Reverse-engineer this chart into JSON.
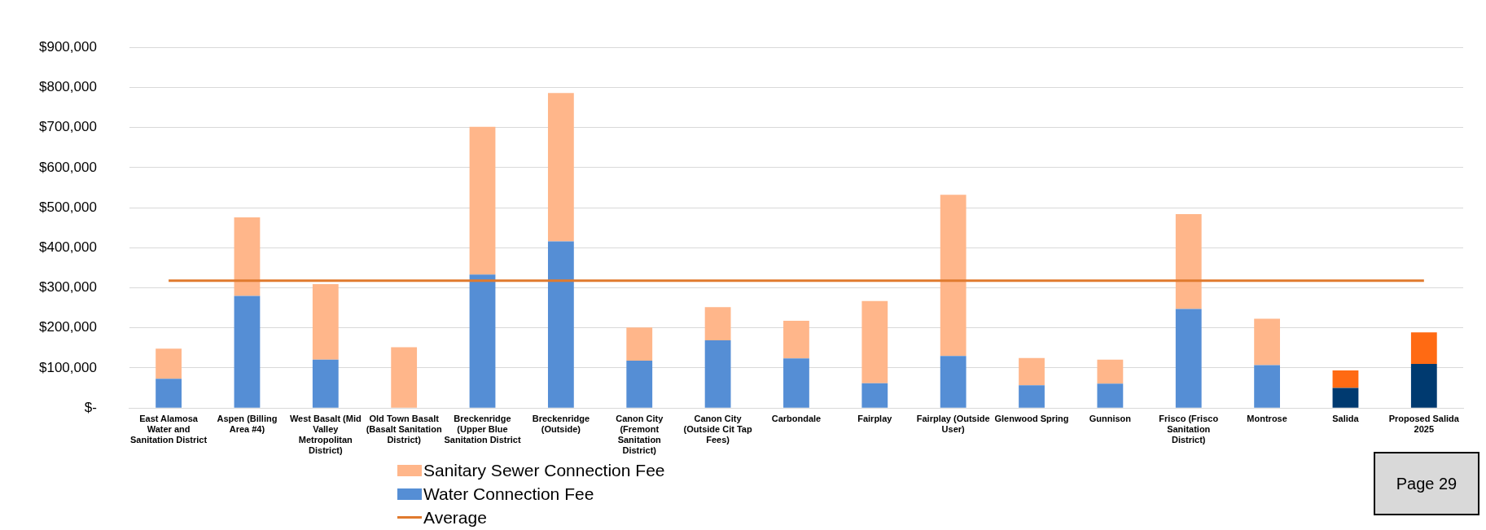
{
  "chart_data": {
    "type": "bar",
    "stacked": true,
    "categories": [
      "East Alamosa Water and Sanitation District",
      "Aspen (Billing Area #4)",
      "West Basalt (Mid Valley Metropolitan District)",
      "Old Town Basalt (Basalt Sanitation District)",
      "Breckenridge (Upper Blue Sanitation District",
      "Breckenridge (Outside)",
      "Canon City (Fremont Sanitation District)",
      "Canon City (Outside Cit Tap Fees)",
      "Carbondale",
      "Fairplay",
      "Fairplay (Outside User)",
      "Glenwood Spring",
      "Gunnison",
      "Frisco (Frisco Sanitation District)",
      "Montrose",
      "Salida",
      "Proposed Salida 2025"
    ],
    "series": [
      {
        "name": "Water Connection Fee",
        "color": "#558ed5",
        "colors": [
          "#558ed5",
          "#558ed5",
          "#558ed5",
          "#558ed5",
          "#558ed5",
          "#558ed5",
          "#558ed5",
          "#558ed5",
          "#558ed5",
          "#558ed5",
          "#558ed5",
          "#558ed5",
          "#558ed5",
          "#558ed5",
          "#558ed5",
          "#003a70",
          "#003a70"
        ],
        "values": [
          73000,
          280000,
          121000,
          0,
          333000,
          416000,
          118000,
          169000,
          124000,
          62000,
          130000,
          57000,
          61000,
          247000,
          107000,
          50000,
          110000
        ]
      },
      {
        "name": "Sanitary Sewer Connection Fee",
        "color": "#ffb68a",
        "colors": [
          "#ffb68a",
          "#ffb68a",
          "#ffb68a",
          "#ffb68a",
          "#ffb68a",
          "#ffb68a",
          "#ffb68a",
          "#ffb68a",
          "#ffb68a",
          "#ffb68a",
          "#ffb68a",
          "#ffb68a",
          "#ffb68a",
          "#ffb68a",
          "#ffb68a",
          "#ff6a13",
          "#ff6a13"
        ],
        "values": [
          75000,
          196000,
          188000,
          152000,
          369000,
          370000,
          83000,
          83000,
          94000,
          205000,
          402000,
          68000,
          60000,
          237000,
          116000,
          44000,
          79000
        ]
      },
      {
        "name": "Average",
        "type": "line",
        "color": "#e07a2e",
        "marker": "none",
        "values": [
          318000,
          318000,
          318000,
          318000,
          318000,
          318000,
          318000,
          318000,
          318000,
          318000,
          318000,
          318000,
          318000,
          318000,
          318000,
          318000,
          318000
        ]
      }
    ],
    "ylim": [
      0,
      900000
    ],
    "yticks": [
      {
        "value": 0,
        "label": "$-"
      },
      {
        "value": 100000,
        "label": "$100,000"
      },
      {
        "value": 200000,
        "label": "$200,000"
      },
      {
        "value": 300000,
        "label": "$300,000"
      },
      {
        "value": 400000,
        "label": "$400,000"
      },
      {
        "value": 500000,
        "label": "$500,000"
      },
      {
        "value": 600000,
        "label": "$600,000"
      },
      {
        "value": 700000,
        "label": "$700,000"
      },
      {
        "value": 800000,
        "label": "$800,000"
      },
      {
        "value": 900000,
        "label": "$900,000"
      }
    ],
    "grid": "y",
    "legend": "bottom",
    "annotations": [
      "Page 29"
    ]
  }
}
